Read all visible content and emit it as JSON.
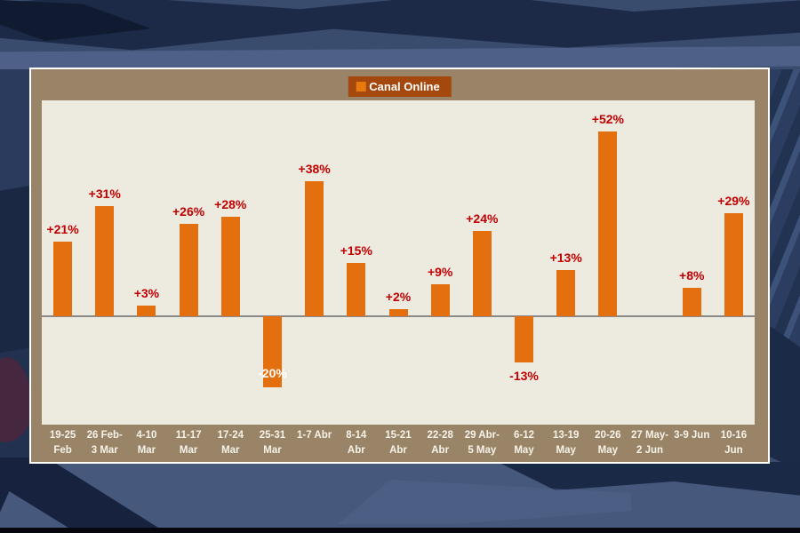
{
  "chart_data": {
    "type": "bar",
    "title": "",
    "legend": "Canal Online",
    "legend_position": "top-center",
    "grid": false,
    "ylim": [
      -30.5,
      60.75
    ],
    "categories": [
      "19-25 Feb",
      "26 Feb-3 Mar",
      "4-10 Mar",
      "11-17 Mar",
      "17-24 Mar",
      "25-31 Mar",
      "1-7 Abr",
      "8-14 Abr",
      "15-21 Abr",
      "22-28 Abr",
      "29 Abr-5 May",
      "6-12 May",
      "13-19 May",
      "20-26 May",
      "27 May-2 Jun",
      "3-9 Jun",
      "10-16 Jun"
    ],
    "category_label_lines": [
      [
        "19-25",
        "Feb"
      ],
      [
        "26 Feb-",
        "3 Mar"
      ],
      [
        "4-10",
        "Mar"
      ],
      [
        "11-17",
        "Mar"
      ],
      [
        "17-24",
        "Mar"
      ],
      [
        "25-31",
        "Mar"
      ],
      [
        "1-7 Abr"
      ],
      [
        "8-14",
        "Abr"
      ],
      [
        "15-21",
        "Abr"
      ],
      [
        "22-28",
        "Abr"
      ],
      [
        "29 Abr-",
        "5 May"
      ],
      [
        "6-12",
        "May"
      ],
      [
        "13-19",
        "May"
      ],
      [
        "20-26",
        "May"
      ],
      [
        "27 May-",
        "2 Jun"
      ],
      [
        "3-9 Jun"
      ],
      [
        "10-16",
        "Jun"
      ]
    ],
    "values": [
      21,
      31,
      3,
      26,
      28,
      -20,
      38,
      15,
      2,
      9,
      24,
      -13,
      13,
      52,
      0,
      8,
      29
    ],
    "bar_labels": [
      "+21%",
      "+31%",
      "+3%",
      "+26%",
      "+28%",
      "-20%",
      "+38%",
      "+15%",
      "+2%",
      "+9%",
      "+24%",
      "-13%",
      "+13%",
      "+52%",
      "",
      "+8%",
      "+29%"
    ],
    "label_styles": [
      "above",
      "above",
      "above",
      "above",
      "above",
      "inside-end",
      "above",
      "above",
      "above",
      "above",
      "above",
      "below",
      "above",
      "above",
      "none",
      "above",
      "above"
    ],
    "colors": {
      "bar": "#E36F0E",
      "label": "#C00000",
      "label_negative_inside": "#FFFFFF",
      "plot_bg": "#EDEAE0",
      "frame_bg": "#998467",
      "frame_border": "#FFFFFF",
      "legend_bg": "#A4480D",
      "legend_swatch": "#E8790F",
      "axis_line": "#8A8A8A",
      "tick_label": "#F7F3E8"
    }
  }
}
